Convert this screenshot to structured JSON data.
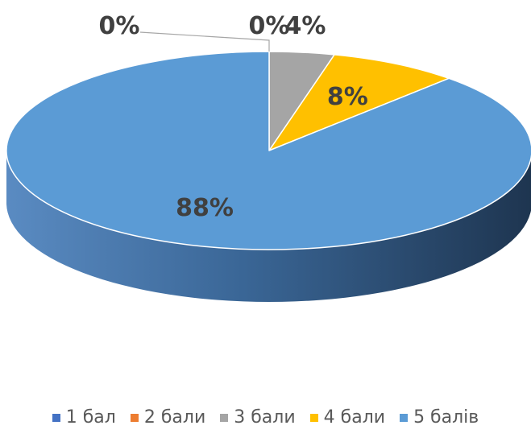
{
  "chart_data": {
    "type": "pie",
    "style": "3d",
    "categories": [
      "1 бал",
      "2 бали",
      "3 бали",
      "4 бали",
      "5 балів"
    ],
    "values": [
      0,
      0,
      4,
      8,
      88
    ],
    "value_labels": [
      "0%",
      "0%",
      "4%",
      "8%",
      "88%"
    ],
    "colors": [
      "#4472C4",
      "#ED7D31",
      "#A5A5A5",
      "#FFC000",
      "#5B9BD5"
    ],
    "legend_position": "bottom",
    "title": ""
  }
}
